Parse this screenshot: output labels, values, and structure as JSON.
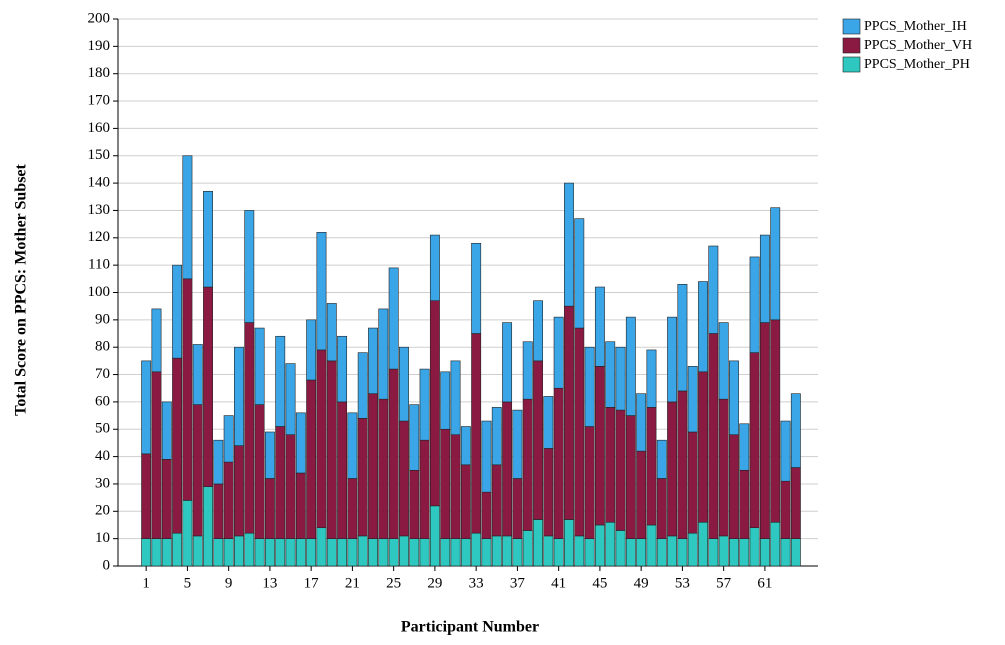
{
  "chart_data": {
    "type": "stacked_bar",
    "y_label": "Total Score on PPCS: Mother Subset",
    "x_label": "Participant Number",
    "categories": [
      "1",
      null,
      null,
      null,
      "5",
      null,
      null,
      null,
      "9",
      null,
      null,
      null,
      "13",
      null,
      null,
      null,
      "17",
      null,
      null,
      null,
      "21",
      null,
      null,
      null,
      "25",
      null,
      null,
      null,
      "29",
      null,
      null,
      null,
      "33",
      null,
      null,
      null,
      "37",
      null,
      null,
      null,
      "41",
      null,
      null,
      null,
      "45",
      null,
      null,
      null,
      "49",
      null,
      null,
      null,
      "53",
      null,
      null,
      null,
      "57",
      null,
      null,
      null,
      "61",
      null,
      null,
      null
    ],
    "series": [
      {
        "name": "PPCS_Mother_IH",
        "color": "#3aa6e8",
        "values": [
          34,
          23,
          21,
          34,
          45,
          22,
          35,
          16,
          17,
          36,
          41,
          28,
          17,
          33,
          26,
          22,
          22,
          43,
          21,
          24,
          24,
          24,
          24,
          33,
          37,
          27,
          24,
          26,
          24,
          21,
          27,
          14,
          33,
          26,
          21,
          29,
          25,
          21,
          22,
          19,
          26,
          45,
          40,
          29,
          29,
          24,
          23,
          36,
          21,
          21,
          14,
          31,
          39,
          24,
          33,
          32,
          28,
          27,
          17,
          35,
          32,
          41,
          22,
          27
        ]
      },
      {
        "name": "PPCS_Mother_VH",
        "color": "#8b1a42",
        "values": [
          31,
          61,
          29,
          64,
          81,
          48,
          73,
          20,
          28,
          33,
          77,
          49,
          22,
          41,
          38,
          24,
          58,
          65,
          65,
          50,
          22,
          43,
          53,
          51,
          62,
          42,
          25,
          36,
          75,
          40,
          38,
          27,
          73,
          17,
          26,
          49,
          22,
          48,
          58,
          32,
          55,
          78,
          76,
          41,
          58,
          42,
          44,
          45,
          32,
          43,
          22,
          49,
          54,
          37,
          55,
          75,
          50,
          38,
          25,
          64,
          79,
          74,
          21,
          26
        ]
      },
      {
        "name": "PPCS_Mother_PH",
        "color": "#2ec8c0",
        "values": [
          10,
          10,
          10,
          12,
          24,
          11,
          29,
          10,
          10,
          11,
          12,
          10,
          10,
          10,
          10,
          10,
          10,
          14,
          10,
          10,
          10,
          11,
          10,
          10,
          10,
          11,
          10,
          10,
          22,
          10,
          10,
          10,
          12,
          10,
          11,
          11,
          10,
          13,
          17,
          11,
          10,
          17,
          11,
          10,
          15,
          16,
          13,
          10,
          10,
          15,
          10,
          11,
          10,
          12,
          16,
          10,
          11,
          10,
          10,
          14,
          10,
          16,
          10,
          10
        ]
      }
    ],
    "ylim": [
      0,
      200
    ],
    "yticks": [
      0,
      10,
      20,
      30,
      40,
      50,
      60,
      70,
      80,
      90,
      100,
      110,
      120,
      130,
      140,
      150,
      160,
      170,
      180,
      190,
      200
    ],
    "grid": true,
    "legend": "top-right"
  }
}
